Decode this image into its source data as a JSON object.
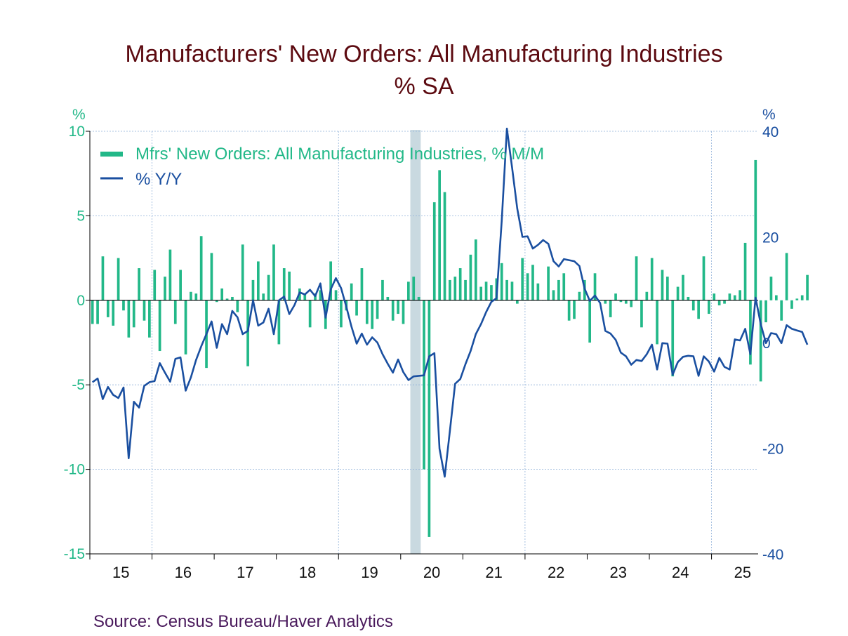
{
  "title": "Manufacturers' New Orders: All Manufacturing Industries",
  "subtitle": "%   SA",
  "source": "Source:  Census Bureau/Haver Analytics",
  "colors": {
    "bars": "#22b888",
    "line": "#1a4fa0",
    "title": "#5c0a10",
    "recession": "#c9d9e0",
    "grid": "#8fb0d8"
  },
  "chart_data": {
    "type": "bar+line",
    "start": "2015-01",
    "end": "2025-09",
    "recession": {
      "start": "2020-03",
      "end": "2020-04"
    },
    "legend_position": "top-left",
    "grid": true,
    "left_axis": {
      "unit": "%",
      "ylim": [
        -15,
        10
      ],
      "ticks": [
        10,
        5,
        0,
        -5,
        -10,
        -15
      ],
      "tick_labels": [
        "10",
        "5",
        "0",
        "-5",
        "-10",
        "-15"
      ]
    },
    "right_axis": {
      "unit": "%",
      "ylim": [
        -40,
        40
      ],
      "ticks": [
        40,
        20,
        0,
        -20,
        -40
      ],
      "tick_labels": [
        "40",
        "20",
        "0",
        "-20",
        "-40"
      ]
    },
    "x_tick_labels": [
      "15",
      "16",
      "17",
      "18",
      "19",
      "20",
      "21",
      "22",
      "23",
      "24",
      "25"
    ],
    "series": [
      {
        "name": "Mfrs' New Orders: All Manufacturing Industries, % M/M",
        "type": "bar",
        "axis": "left",
        "values": [
          -1.4,
          -1.4,
          2.6,
          -1.0,
          -1.5,
          2.5,
          -0.6,
          -2.2,
          -1.6,
          1.9,
          -1.2,
          -2.2,
          1.8,
          -3.0,
          1.4,
          3.0,
          -1.4,
          1.8,
          -3.2,
          0.5,
          0.4,
          3.8,
          -4.0,
          2.8,
          -0.1,
          0.7,
          0.1,
          0.2,
          -0.7,
          3.3,
          -3.9,
          1.2,
          2.3,
          0.4,
          1.5,
          3.3,
          -2.6,
          1.9,
          1.7,
          0.0,
          0.7,
          0.4,
          -1.6,
          0.4,
          0.6,
          -1.7,
          2.3,
          0.6,
          -1.6,
          -0.6,
          1.0,
          -0.9,
          1.9,
          -1.4,
          -1.7,
          -1.1,
          1.2,
          0.2,
          -1.2,
          -0.8,
          -1.4,
          1.1,
          1.4,
          0.2,
          -10.0,
          -14.0,
          5.8,
          7.7,
          6.4,
          1.2,
          1.4,
          1.9,
          1.2,
          2.7,
          3.6,
          0.8,
          1.1,
          0.9,
          1.3,
          2.2,
          1.2,
          1.1,
          -0.2,
          2.5,
          1.6,
          2.1,
          1.0,
          0.0,
          2.0,
          0.6,
          1.2,
          1.6,
          -1.2,
          -1.1,
          0.5,
          1.2,
          -2.5,
          1.6,
          0.0,
          -0.2,
          -1.0,
          0.4,
          -0.1,
          -0.2,
          -0.4,
          2.6,
          -1.6,
          0.5,
          2.5,
          -2.6,
          1.8,
          1.4,
          -4.5,
          0.8,
          1.5,
          0.2,
          -0.6,
          -1.1,
          2.6,
          -0.8,
          0.4,
          -0.3,
          -0.2,
          0.4,
          0.3,
          0.6,
          3.4,
          -3.8,
          8.3,
          -4.8,
          -1.3,
          1.4,
          0.3,
          -1.2,
          2.8,
          -0.5,
          0.1,
          0.3,
          1.5
        ]
      },
      {
        "name": "% Y/Y",
        "type": "line",
        "axis": "right",
        "values": [
          -7.5,
          -6.8,
          -10.7,
          -8.4,
          -9.9,
          -10.5,
          -8.5,
          -21.9,
          -11.2,
          -12.3,
          -8.2,
          -7.5,
          -7.3,
          -3.9,
          -5.7,
          -7.4,
          -3.1,
          -2.8,
          -9.1,
          -6.6,
          -3.3,
          -0.7,
          1.6,
          4.0,
          -1.0,
          3.5,
          1.6,
          6.0,
          4.8,
          1.6,
          2.2,
          8.0,
          3.2,
          3.8,
          6.4,
          1.6,
          8.0,
          8.7,
          5.4,
          7.1,
          9.5,
          9.1,
          10.0,
          8.8,
          11.2,
          4.7,
          10.1,
          12.2,
          10.3,
          6.8,
          3.0,
          -0.2,
          1.7,
          -0.4,
          1.0,
          0.0,
          -2.2,
          -4.0,
          -5.7,
          -3.2,
          -5.6,
          -7.1,
          -6.4,
          -6.3,
          -6.2,
          -2.6,
          -2.0,
          -20.1,
          -25.4,
          -16.7,
          -7.8,
          -6.9,
          -4.1,
          -1.6,
          1.6,
          3.5,
          5.8,
          7.7,
          8.4,
          23.0,
          40.5,
          33.1,
          25.4,
          20.0,
          20.1,
          17.8,
          18.5,
          19.4,
          18.7,
          15.4,
          14.4,
          15.8,
          15.6,
          15.4,
          14.5,
          10.2,
          7.9,
          8.9,
          7.5,
          2.2,
          1.7,
          0.5,
          -1.9,
          -2.6,
          -4.2,
          -3.3,
          -3.5,
          -2.2,
          -0.4,
          -5.1,
          -0.1,
          -0.2,
          -6.1,
          -3.7,
          -2.7,
          -2.5,
          -2.6,
          -6.3,
          -2.6,
          -3.6,
          -5.5,
          -2.9,
          -4.6,
          -5.1,
          0.6,
          0.4,
          2.6,
          -2.2,
          8.5,
          3.5,
          -0.1,
          1.8,
          1.6,
          -0.1,
          3.3,
          2.6,
          2.3,
          2.0,
          -0.4
        ]
      }
    ]
  }
}
